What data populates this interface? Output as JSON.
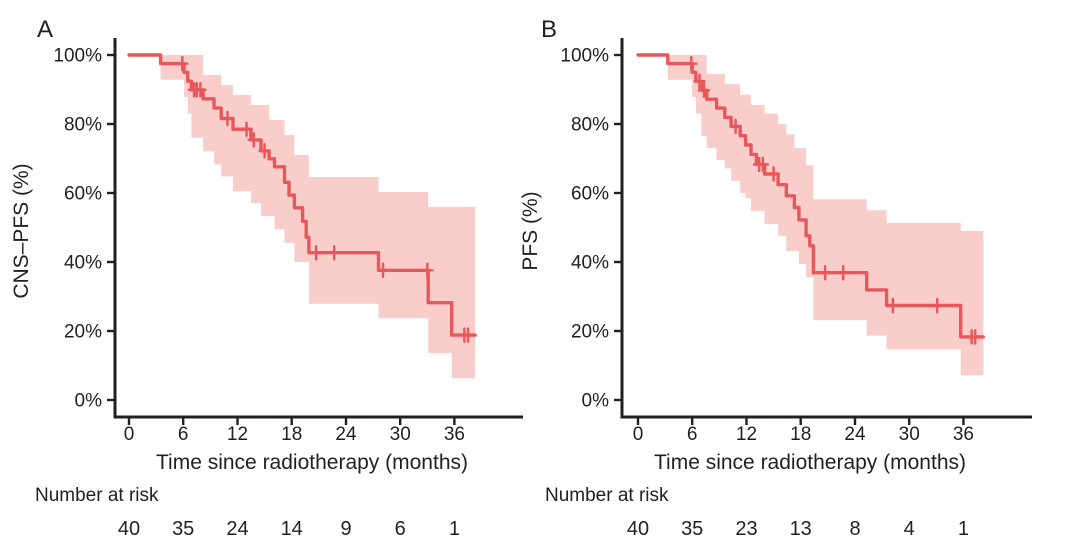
{
  "figure": {
    "xlabel": "Time since radiotherapy (months)",
    "risk_header": "Number at risk",
    "colors": {
      "curve": "#e7585d",
      "band": "#f9cdca",
      "axis": "#231f20",
      "text": "#231f20"
    }
  },
  "chart_data": [
    {
      "type": "line",
      "subtype": "kaplan-meier-step",
      "panel_label": "A",
      "title": "",
      "xlabel": "Time since radiotherapy (months)",
      "ylabel": "CNS–PFS (%)",
      "xticks": [
        0,
        6,
        12,
        18,
        24,
        30,
        36
      ],
      "ytick_labels": [
        "0%",
        "20%",
        "40%",
        "60%",
        "80%",
        "100%"
      ],
      "ytick_values": [
        0,
        20,
        40,
        60,
        80,
        100
      ],
      "xlim": [
        0,
        43.5
      ],
      "ylim": [
        0,
        100
      ],
      "legend": "none",
      "grid": false,
      "steps_format": "[time_months, survival_pct, ci_lower_pct, ci_upper_pct]",
      "steps": [
        [
          0,
          100,
          null,
          null
        ],
        [
          3.5,
          97.5,
          92.8,
          100
        ],
        [
          6.1,
          95.0,
          87.8,
          100
        ],
        [
          6.5,
          92.4,
          83.0,
          100
        ],
        [
          6.9,
          89.9,
          76.0,
          100
        ],
        [
          8.2,
          87.3,
          72.1,
          94.2
        ],
        [
          9.4,
          84.6,
          68.3,
          94.2
        ],
        [
          10.2,
          81.6,
          64.8,
          91.3
        ],
        [
          11.5,
          78.5,
          60.5,
          88.4
        ],
        [
          13.5,
          75.4,
          57.1,
          85.5
        ],
        [
          14.6,
          72.2,
          53.3,
          85.5
        ],
        [
          15.5,
          69.9,
          53.3,
          81.2
        ],
        [
          16.1,
          67.6,
          49.5,
          81.2
        ],
        [
          17.2,
          63.1,
          45.5,
          76.8
        ],
        [
          17.7,
          59.4,
          45.5,
          76.8
        ],
        [
          18.3,
          55.7,
          40.0,
          71.0
        ],
        [
          19.2,
          51.8,
          40.0,
          71.0
        ],
        [
          19.6,
          47.2,
          40.0,
          71.0
        ],
        [
          19.9,
          42.7,
          27.9,
          64.6
        ],
        [
          27.6,
          37.6,
          23.7,
          60.3
        ],
        [
          33.1,
          28.2,
          13.6,
          56.0
        ],
        [
          35.7,
          18.8,
          6.3,
          56.0
        ]
      ],
      "end_time": 38.3,
      "censor_marks": [
        [
          5.9,
          97.5
        ],
        [
          7.2,
          89.9
        ],
        [
          7.5,
          89.9
        ],
        [
          7.9,
          89.9
        ],
        [
          10.9,
          81.6
        ],
        [
          13.0,
          78.5
        ],
        [
          13.8,
          75.4
        ],
        [
          15.0,
          72.2
        ],
        [
          20.7,
          42.7
        ],
        [
          22.7,
          42.7
        ],
        [
          28.1,
          37.6
        ],
        [
          33.0,
          37.6
        ],
        [
          37.1,
          18.8
        ],
        [
          37.5,
          18.8
        ]
      ],
      "risk_times": [
        0,
        6,
        12,
        18,
        24,
        30,
        36
      ],
      "number_at_risk": [
        40,
        35,
        24,
        14,
        9,
        6,
        1
      ]
    },
    {
      "type": "line",
      "subtype": "kaplan-meier-step",
      "panel_label": "B",
      "title": "",
      "xlabel": "Time since radiotherapy (months)",
      "ylabel": "PFS (%)",
      "xticks": [
        0,
        6,
        12,
        18,
        24,
        30,
        36
      ],
      "ytick_labels": [
        "0%",
        "20%",
        "40%",
        "60%",
        "80%",
        "100%"
      ],
      "ytick_values": [
        0,
        20,
        40,
        60,
        80,
        100
      ],
      "xlim": [
        0,
        43.5
      ],
      "ylim": [
        0,
        100
      ],
      "legend": "none",
      "grid": false,
      "steps_format": "[time_months, survival_pct, ci_lower_pct, ci_upper_pct]",
      "steps": [
        [
          0,
          100,
          null,
          null
        ],
        [
          3.3,
          97.5,
          92.8,
          100
        ],
        [
          6.0,
          95.0,
          87.8,
          100
        ],
        [
          6.4,
          92.4,
          83.0,
          100
        ],
        [
          7.0,
          89.8,
          76.5,
          100
        ],
        [
          7.6,
          87.2,
          73.0,
          94.5
        ],
        [
          8.7,
          84.6,
          69.5,
          94.5
        ],
        [
          9.6,
          81.9,
          67.1,
          91.5
        ],
        [
          10.3,
          79.3,
          63.5,
          91.5
        ],
        [
          11.3,
          76.6,
          60.0,
          88.5
        ],
        [
          11.9,
          73.9,
          58.5,
          88.5
        ],
        [
          12.5,
          71.2,
          54.8,
          85.5
        ],
        [
          13.1,
          68.3,
          54.8,
          85.5
        ],
        [
          14.0,
          65.5,
          51.0,
          83.0
        ],
        [
          15.5,
          62.4,
          47.6,
          80.0
        ],
        [
          16.4,
          59.2,
          43.2,
          77.0
        ],
        [
          17.3,
          55.8,
          43.2,
          73.0
        ],
        [
          17.8,
          52.2,
          39.4,
          73.0
        ],
        [
          18.6,
          47.6,
          35.6,
          68.0
        ],
        [
          19.0,
          44.7,
          35.6,
          68.0
        ],
        [
          19.4,
          36.9,
          23.1,
          58.2
        ],
        [
          25.3,
          31.9,
          18.7,
          55.0
        ],
        [
          27.5,
          27.4,
          14.7,
          51.3
        ],
        [
          35.7,
          18.3,
          7.2,
          49.0
        ]
      ],
      "end_time": 38.2,
      "censor_marks": [
        [
          5.9,
          97.5
        ],
        [
          6.8,
          92.4
        ],
        [
          7.3,
          89.8
        ],
        [
          10.8,
          79.3
        ],
        [
          13.4,
          68.3
        ],
        [
          13.8,
          68.3
        ],
        [
          15.0,
          65.5
        ],
        [
          20.7,
          36.9
        ],
        [
          22.7,
          36.9
        ],
        [
          28.2,
          27.4
        ],
        [
          33.1,
          27.4
        ],
        [
          36.9,
          18.3
        ],
        [
          37.3,
          18.3
        ]
      ],
      "risk_times": [
        0,
        6,
        12,
        18,
        24,
        30,
        36
      ],
      "number_at_risk": [
        40,
        35,
        23,
        13,
        8,
        4,
        1
      ]
    }
  ]
}
